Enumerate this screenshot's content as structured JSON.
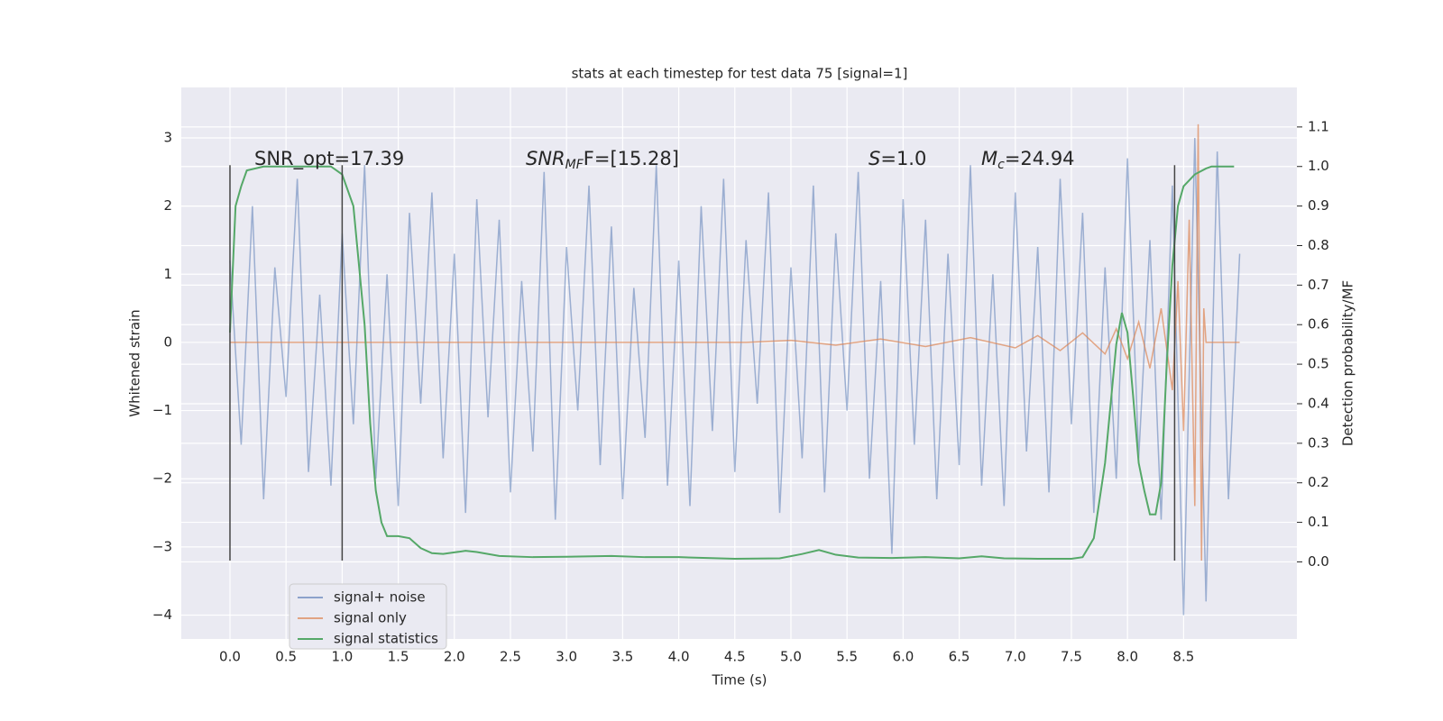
{
  "chart_data": {
    "type": "line",
    "title": "stats at each timestep for test data 75 [signal=1]",
    "xlabel": "Time (s)",
    "ylabel": "Whitened strain",
    "y2label": "Detection probability/MF",
    "xlim": [
      -0.434,
      9.51
    ],
    "ylim": [
      -4.35,
      3.74
    ],
    "y2lim": [
      -0.195,
      1.2
    ],
    "xticks": [
      {
        "value": 0,
        "label": "0.0"
      },
      0.5,
      {
        "value": 1,
        "label": "1.0"
      },
      1.5,
      {
        "value": 2,
        "label": "2.0"
      },
      2.5,
      {
        "value": 3,
        "label": "3.0"
      },
      3.5,
      {
        "value": 4,
        "label": "4.0"
      },
      4.5,
      {
        "value": 5,
        "label": "5.0"
      },
      5.5,
      {
        "value": 6,
        "label": "6.0"
      },
      6.5,
      {
        "value": 7,
        "label": "7.0"
      },
      7.5,
      {
        "value": 8,
        "label": "8.0"
      },
      8.5
    ],
    "yticks": [
      {
        "value": -4,
        "label": "−4"
      },
      {
        "value": -3,
        "label": "−3"
      },
      {
        "value": -2,
        "label": "−2"
      },
      {
        "value": -1,
        "label": "−1"
      },
      0,
      1,
      2,
      3
    ],
    "y2ticks": [
      {
        "value": 0,
        "label": "0.0"
      },
      0.1,
      0.2,
      0.3,
      0.4,
      0.5,
      0.6,
      0.7,
      0.8,
      0.9,
      {
        "value": 1,
        "label": "1.0"
      },
      1.1
    ],
    "grid": true,
    "legend": "lower left",
    "annotations": [
      {
        "text": "SNR_opt=17.39"
      },
      {
        "text": "SNR",
        "sub": "MF",
        "rest": "F=[15.28]"
      },
      {
        "text": "S",
        "rest": "=1.0"
      },
      {
        "text": "M",
        "sub": "c",
        "rest": "=24.94"
      }
    ],
    "vlines": [
      0,
      1.0,
      8.42
    ],
    "vline_span": [
      -3.2,
      2.6
    ],
    "vline_color": "#444444",
    "series": [
      {
        "name": "signal+ noise",
        "color": "#4c72b0",
        "x": [
          0,
          0.1,
          0.2,
          0.3,
          0.4,
          0.5,
          0.6,
          0.7,
          0.8,
          0.9,
          1.0,
          1.1,
          1.2,
          1.3,
          1.4,
          1.5,
          1.6,
          1.7,
          1.8,
          1.9,
          2.0,
          2.1,
          2.2,
          2.3,
          2.4,
          2.5,
          2.6,
          2.7,
          2.8,
          2.9,
          3.0,
          3.1,
          3.2,
          3.3,
          3.4,
          3.5,
          3.6,
          3.7,
          3.8,
          3.9,
          4.0,
          4.1,
          4.2,
          4.3,
          4.4,
          4.5,
          4.6,
          4.7,
          4.8,
          4.9,
          5.0,
          5.1,
          5.2,
          5.3,
          5.4,
          5.5,
          5.6,
          5.7,
          5.8,
          5.9,
          6.0,
          6.1,
          6.2,
          6.3,
          6.4,
          6.5,
          6.6,
          6.7,
          6.8,
          6.9,
          7.0,
          7.1,
          7.2,
          7.3,
          7.4,
          7.5,
          7.6,
          7.7,
          7.8,
          7.9,
          8.0,
          8.1,
          8.2,
          8.3,
          8.4,
          8.5,
          8.6,
          8.7,
          8.8,
          8.9,
          9.0
        ],
        "values": [
          1.2,
          -1.5,
          2.0,
          -2.3,
          1.1,
          -0.8,
          2.4,
          -1.9,
          0.7,
          -2.1,
          1.6,
          -1.2,
          2.6,
          -2.0,
          1.0,
          -2.4,
          1.9,
          -0.9,
          2.2,
          -1.7,
          1.3,
          -2.5,
          2.1,
          -1.1,
          1.8,
          -2.2,
          0.9,
          -1.6,
          2.5,
          -2.6,
          1.4,
          -1.0,
          2.3,
          -1.8,
          1.7,
          -2.3,
          0.8,
          -1.4,
          2.6,
          -2.1,
          1.2,
          -2.4,
          2.0,
          -1.3,
          2.4,
          -1.9,
          1.5,
          -0.9,
          2.2,
          -2.5,
          1.1,
          -1.7,
          2.3,
          -2.2,
          1.6,
          -1.0,
          2.5,
          -2.0,
          0.9,
          -3.1,
          2.1,
          -1.5,
          1.8,
          -2.3,
          1.3,
          -1.8,
          2.6,
          -2.1,
          1.0,
          -2.4,
          2.2,
          -1.6,
          1.4,
          -2.2,
          2.4,
          -1.2,
          1.9,
          -2.5,
          1.1,
          -2.0,
          2.7,
          -1.7,
          1.5,
          -2.6,
          2.3,
          -4.0,
          3.0,
          -3.8,
          2.8,
          -2.3,
          1.3
        ]
      },
      {
        "name": "signal only",
        "color": "#dd8452",
        "x": [
          0,
          4.6,
          5.0,
          5.4,
          5.8,
          6.2,
          6.6,
          7.0,
          7.2,
          7.4,
          7.6,
          7.8,
          7.9,
          8.0,
          8.1,
          8.2,
          8.3,
          8.4,
          8.45,
          8.5,
          8.55,
          8.6,
          8.63,
          8.66,
          8.68,
          8.7,
          9.0
        ],
        "values": [
          0,
          0,
          0.03,
          -0.04,
          0.05,
          -0.06,
          0.07,
          -0.08,
          0.1,
          -0.12,
          0.14,
          -0.17,
          0.2,
          -0.24,
          0.3,
          -0.38,
          0.5,
          -0.7,
          0.9,
          -1.3,
          1.8,
          -2.4,
          3.2,
          -3.2,
          0.5,
          0,
          0
        ]
      },
      {
        "name": "signal statistics",
        "color": "#55a868",
        "axis": "y2",
        "x": [
          0,
          0.05,
          0.1,
          0.15,
          0.3,
          0.9,
          1.0,
          1.1,
          1.2,
          1.25,
          1.3,
          1.35,
          1.4,
          1.5,
          1.6,
          1.7,
          1.8,
          1.9,
          2.0,
          2.1,
          2.2,
          2.4,
          2.7,
          3.0,
          3.4,
          3.7,
          4.0,
          4.5,
          4.9,
          5.1,
          5.25,
          5.4,
          5.6,
          5.9,
          6.2,
          6.5,
          6.7,
          6.9,
          7.2,
          7.5,
          7.6,
          7.7,
          7.8,
          7.9,
          7.95,
          8.0,
          8.05,
          8.1,
          8.15,
          8.2,
          8.25,
          8.3,
          8.35,
          8.4,
          8.45,
          8.5,
          8.6,
          8.7,
          8.75,
          8.95
        ],
        "values": [
          0.58,
          0.9,
          0.95,
          0.99,
          1.0,
          1.0,
          0.98,
          0.9,
          0.6,
          0.35,
          0.18,
          0.1,
          0.065,
          0.065,
          0.06,
          0.035,
          0.022,
          0.02,
          0.024,
          0.028,
          0.025,
          0.015,
          0.012,
          0.013,
          0.015,
          0.012,
          0.012,
          0.008,
          0.009,
          0.02,
          0.03,
          0.018,
          0.011,
          0.01,
          0.012,
          0.009,
          0.014,
          0.009,
          0.008,
          0.008,
          0.012,
          0.06,
          0.25,
          0.55,
          0.63,
          0.58,
          0.42,
          0.25,
          0.18,
          0.12,
          0.12,
          0.2,
          0.5,
          0.75,
          0.9,
          0.95,
          0.98,
          0.995,
          1.0,
          1.0
        ]
      }
    ]
  }
}
